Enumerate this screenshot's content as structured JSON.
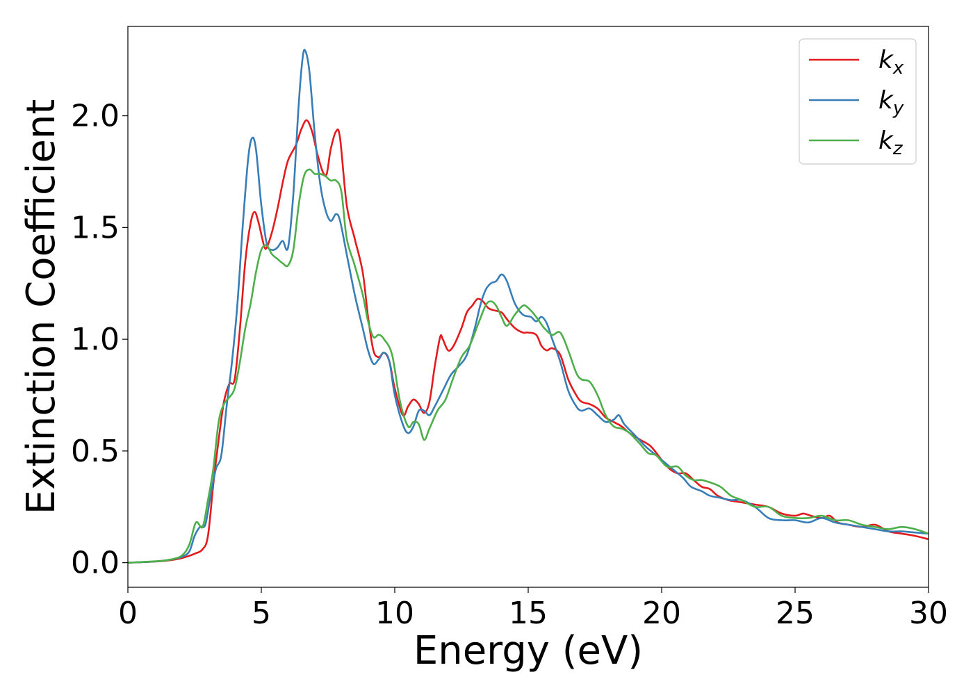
{
  "chart_data": {
    "type": "line",
    "xlabel": "Energy (eV)",
    "ylabel": "Extinction Coefficient",
    "xlim": [
      0,
      30
    ],
    "ylim": [
      -0.11,
      2.4
    ],
    "xticks": [
      "0",
      "5",
      "10",
      "15",
      "20",
      "25",
      "30"
    ],
    "yticks": [
      "0.0",
      "0.5",
      "1.0",
      "1.5",
      "2.0"
    ],
    "grid": false,
    "legend_position": "top-right",
    "series": [
      {
        "name": "k",
        "subscript": "x",
        "color": "#e41a1c",
        "points": [
          [
            0,
            0
          ],
          [
            1,
            0.005
          ],
          [
            1.5,
            0.01
          ],
          [
            2,
            0.02
          ],
          [
            2.5,
            0.04
          ],
          [
            2.8,
            0.06
          ],
          [
            3.0,
            0.12
          ],
          [
            3.2,
            0.35
          ],
          [
            3.4,
            0.55
          ],
          [
            3.6,
            0.72
          ],
          [
            3.8,
            0.8
          ],
          [
            4.0,
            0.82
          ],
          [
            4.2,
            1.05
          ],
          [
            4.4,
            1.35
          ],
          [
            4.6,
            1.52
          ],
          [
            4.75,
            1.57
          ],
          [
            4.9,
            1.52
          ],
          [
            5.1,
            1.42
          ],
          [
            5.2,
            1.41
          ],
          [
            5.4,
            1.48
          ],
          [
            5.6,
            1.58
          ],
          [
            5.8,
            1.7
          ],
          [
            6.0,
            1.8
          ],
          [
            6.3,
            1.87
          ],
          [
            6.5,
            1.94
          ],
          [
            6.7,
            1.98
          ],
          [
            6.9,
            1.93
          ],
          [
            7.1,
            1.83
          ],
          [
            7.3,
            1.75
          ],
          [
            7.45,
            1.74
          ],
          [
            7.6,
            1.85
          ],
          [
            7.8,
            1.93
          ],
          [
            7.95,
            1.9
          ],
          [
            8.2,
            1.6
          ],
          [
            8.5,
            1.45
          ],
          [
            8.8,
            1.3
          ],
          [
            9.0,
            1.1
          ],
          [
            9.2,
            0.95
          ],
          [
            9.4,
            0.92
          ],
          [
            9.6,
            0.94
          ],
          [
            9.8,
            0.9
          ],
          [
            10.0,
            0.78
          ],
          [
            10.3,
            0.66
          ],
          [
            10.5,
            0.7
          ],
          [
            10.7,
            0.73
          ],
          [
            10.9,
            0.71
          ],
          [
            11.1,
            0.67
          ],
          [
            11.3,
            0.72
          ],
          [
            11.5,
            0.88
          ],
          [
            11.7,
            1.01
          ],
          [
            11.8,
            1.0
          ],
          [
            12.0,
            0.95
          ],
          [
            12.2,
            0.97
          ],
          [
            12.5,
            1.05
          ],
          [
            12.7,
            1.12
          ],
          [
            12.9,
            1.15
          ],
          [
            13.1,
            1.18
          ],
          [
            13.3,
            1.17
          ],
          [
            13.5,
            1.14
          ],
          [
            13.7,
            1.13
          ],
          [
            14.0,
            1.12
          ],
          [
            14.2,
            1.09
          ],
          [
            14.5,
            1.05
          ],
          [
            14.8,
            1.03
          ],
          [
            15.0,
            1.03
          ],
          [
            15.3,
            1.02
          ],
          [
            15.5,
            0.97
          ],
          [
            15.7,
            0.95
          ],
          [
            15.9,
            0.96
          ],
          [
            16.2,
            0.93
          ],
          [
            16.5,
            0.82
          ],
          [
            16.8,
            0.75
          ],
          [
            17.0,
            0.72
          ],
          [
            17.3,
            0.71
          ],
          [
            17.6,
            0.69
          ],
          [
            17.9,
            0.65
          ],
          [
            18.2,
            0.63
          ],
          [
            18.5,
            0.61
          ],
          [
            18.8,
            0.58
          ],
          [
            19.2,
            0.55
          ],
          [
            19.6,
            0.52
          ],
          [
            20.0,
            0.46
          ],
          [
            20.3,
            0.42
          ],
          [
            20.6,
            0.4
          ],
          [
            20.9,
            0.4
          ],
          [
            21.2,
            0.37
          ],
          [
            21.5,
            0.34
          ],
          [
            21.8,
            0.33
          ],
          [
            22.1,
            0.3
          ],
          [
            22.5,
            0.28
          ],
          [
            23,
            0.27
          ],
          [
            23.5,
            0.26
          ],
          [
            24,
            0.25
          ],
          [
            24.5,
            0.22
          ],
          [
            25,
            0.21
          ],
          [
            25.3,
            0.22
          ],
          [
            25.6,
            0.21
          ],
          [
            26,
            0.2
          ],
          [
            26.3,
            0.21
          ],
          [
            26.6,
            0.18
          ],
          [
            27,
            0.17
          ],
          [
            27.5,
            0.16
          ],
          [
            28,
            0.17
          ],
          [
            28.5,
            0.14
          ],
          [
            29,
            0.13
          ],
          [
            29.5,
            0.12
          ],
          [
            30,
            0.105
          ]
        ]
      },
      {
        "name": "k",
        "subscript": "y",
        "color": "#377eb8",
        "points": [
          [
            0,
            0
          ],
          [
            1,
            0.005
          ],
          [
            1.5,
            0.012
          ],
          [
            2,
            0.025
          ],
          [
            2.3,
            0.05
          ],
          [
            2.5,
            0.12
          ],
          [
            2.7,
            0.16
          ],
          [
            2.9,
            0.17
          ],
          [
            3.1,
            0.3
          ],
          [
            3.3,
            0.42
          ],
          [
            3.5,
            0.48
          ],
          [
            3.7,
            0.7
          ],
          [
            3.9,
            0.9
          ],
          [
            4.1,
            1.15
          ],
          [
            4.3,
            1.5
          ],
          [
            4.5,
            1.8
          ],
          [
            4.65,
            1.9
          ],
          [
            4.8,
            1.85
          ],
          [
            5.0,
            1.6
          ],
          [
            5.2,
            1.43
          ],
          [
            5.4,
            1.4
          ],
          [
            5.6,
            1.41
          ],
          [
            5.8,
            1.44
          ],
          [
            6.0,
            1.41
          ],
          [
            6.2,
            1.65
          ],
          [
            6.4,
            2.05
          ],
          [
            6.55,
            2.26
          ],
          [
            6.65,
            2.29
          ],
          [
            6.8,
            2.2
          ],
          [
            7.0,
            1.92
          ],
          [
            7.2,
            1.7
          ],
          [
            7.4,
            1.58
          ],
          [
            7.6,
            1.53
          ],
          [
            7.8,
            1.56
          ],
          [
            7.95,
            1.53
          ],
          [
            8.2,
            1.38
          ],
          [
            8.5,
            1.2
          ],
          [
            8.8,
            1.05
          ],
          [
            9.0,
            0.95
          ],
          [
            9.2,
            0.89
          ],
          [
            9.4,
            0.91
          ],
          [
            9.6,
            0.94
          ],
          [
            9.8,
            0.9
          ],
          [
            10.0,
            0.75
          ],
          [
            10.3,
            0.62
          ],
          [
            10.5,
            0.58
          ],
          [
            10.7,
            0.61
          ],
          [
            10.9,
            0.68
          ],
          [
            11.1,
            0.68
          ],
          [
            11.3,
            0.66
          ],
          [
            11.5,
            0.7
          ],
          [
            11.8,
            0.77
          ],
          [
            12.1,
            0.84
          ],
          [
            12.4,
            0.88
          ],
          [
            12.7,
            0.93
          ],
          [
            13.0,
            1.05
          ],
          [
            13.2,
            1.15
          ],
          [
            13.4,
            1.22
          ],
          [
            13.6,
            1.25
          ],
          [
            13.8,
            1.26
          ],
          [
            14.0,
            1.29
          ],
          [
            14.2,
            1.26
          ],
          [
            14.5,
            1.16
          ],
          [
            14.8,
            1.11
          ],
          [
            15.1,
            1.1
          ],
          [
            15.3,
            1.08
          ],
          [
            15.5,
            1.1
          ],
          [
            15.7,
            1.07
          ],
          [
            15.9,
            1.0
          ],
          [
            16.2,
            0.9
          ],
          [
            16.5,
            0.77
          ],
          [
            16.8,
            0.7
          ],
          [
            17.0,
            0.68
          ],
          [
            17.3,
            0.69
          ],
          [
            17.6,
            0.66
          ],
          [
            17.9,
            0.63
          ],
          [
            18.2,
            0.64
          ],
          [
            18.4,
            0.66
          ],
          [
            18.6,
            0.62
          ],
          [
            19.0,
            0.57
          ],
          [
            19.4,
            0.52
          ],
          [
            19.8,
            0.48
          ],
          [
            20.2,
            0.44
          ],
          [
            20.5,
            0.41
          ],
          [
            20.8,
            0.38
          ],
          [
            21.1,
            0.34
          ],
          [
            21.5,
            0.32
          ],
          [
            21.8,
            0.3
          ],
          [
            22.2,
            0.29
          ],
          [
            22.6,
            0.28
          ],
          [
            23,
            0.28
          ],
          [
            23.5,
            0.25
          ],
          [
            24,
            0.2
          ],
          [
            24.5,
            0.19
          ],
          [
            25,
            0.19
          ],
          [
            25.5,
            0.18
          ],
          [
            26,
            0.2
          ],
          [
            26.5,
            0.18
          ],
          [
            27,
            0.17
          ],
          [
            27.5,
            0.16
          ],
          [
            28,
            0.15
          ],
          [
            28.5,
            0.14
          ],
          [
            29,
            0.14
          ],
          [
            29.5,
            0.135
          ],
          [
            30,
            0.13
          ]
        ]
      },
      {
        "name": "k",
        "subscript": "z",
        "color": "#4daf4a",
        "points": [
          [
            0,
            0
          ],
          [
            1,
            0.006
          ],
          [
            1.5,
            0.012
          ],
          [
            2,
            0.03
          ],
          [
            2.3,
            0.08
          ],
          [
            2.55,
            0.18
          ],
          [
            2.8,
            0.16
          ],
          [
            3.0,
            0.28
          ],
          [
            3.2,
            0.42
          ],
          [
            3.4,
            0.63
          ],
          [
            3.6,
            0.71
          ],
          [
            3.8,
            0.74
          ],
          [
            4.0,
            0.78
          ],
          [
            4.2,
            0.9
          ],
          [
            4.4,
            1.05
          ],
          [
            4.6,
            1.16
          ],
          [
            4.8,
            1.3
          ],
          [
            5.0,
            1.4
          ],
          [
            5.2,
            1.42
          ],
          [
            5.4,
            1.38
          ],
          [
            5.6,
            1.36
          ],
          [
            5.8,
            1.34
          ],
          [
            6.0,
            1.33
          ],
          [
            6.2,
            1.4
          ],
          [
            6.4,
            1.6
          ],
          [
            6.6,
            1.73
          ],
          [
            6.8,
            1.76
          ],
          [
            7.0,
            1.74
          ],
          [
            7.2,
            1.74
          ],
          [
            7.4,
            1.73
          ],
          [
            7.6,
            1.71
          ],
          [
            7.8,
            1.71
          ],
          [
            8.0,
            1.66
          ],
          [
            8.2,
            1.45
          ],
          [
            8.5,
            1.33
          ],
          [
            8.8,
            1.2
          ],
          [
            9.0,
            1.08
          ],
          [
            9.2,
            1.01
          ],
          [
            9.4,
            1.02
          ],
          [
            9.6,
            1.0
          ],
          [
            9.9,
            0.93
          ],
          [
            10.2,
            0.72
          ],
          [
            10.5,
            0.61
          ],
          [
            10.7,
            0.63
          ],
          [
            10.9,
            0.62
          ],
          [
            11.1,
            0.55
          ],
          [
            11.3,
            0.6
          ],
          [
            11.6,
            0.68
          ],
          [
            11.9,
            0.73
          ],
          [
            12.2,
            0.83
          ],
          [
            12.5,
            0.92
          ],
          [
            12.8,
            0.97
          ],
          [
            13.1,
            1.06
          ],
          [
            13.4,
            1.15
          ],
          [
            13.6,
            1.17
          ],
          [
            13.8,
            1.15
          ],
          [
            14.0,
            1.1
          ],
          [
            14.2,
            1.06
          ],
          [
            14.5,
            1.11
          ],
          [
            14.8,
            1.15
          ],
          [
            15.0,
            1.14
          ],
          [
            15.3,
            1.1
          ],
          [
            15.6,
            1.05
          ],
          [
            15.9,
            1.02
          ],
          [
            16.2,
            1.03
          ],
          [
            16.5,
            0.95
          ],
          [
            16.8,
            0.85
          ],
          [
            17.0,
            0.82
          ],
          [
            17.3,
            0.81
          ],
          [
            17.6,
            0.75
          ],
          [
            17.9,
            0.66
          ],
          [
            18.2,
            0.61
          ],
          [
            18.5,
            0.6
          ],
          [
            18.8,
            0.58
          ],
          [
            19.2,
            0.53
          ],
          [
            19.5,
            0.49
          ],
          [
            19.8,
            0.48
          ],
          [
            20.2,
            0.43
          ],
          [
            20.6,
            0.43
          ],
          [
            20.9,
            0.39
          ],
          [
            21.2,
            0.37
          ],
          [
            21.5,
            0.37
          ],
          [
            21.8,
            0.36
          ],
          [
            22.2,
            0.34
          ],
          [
            22.6,
            0.3
          ],
          [
            23,
            0.28
          ],
          [
            23.5,
            0.25
          ],
          [
            24,
            0.25
          ],
          [
            24.5,
            0.21
          ],
          [
            25,
            0.2
          ],
          [
            25.5,
            0.2
          ],
          [
            26,
            0.21
          ],
          [
            26.5,
            0.19
          ],
          [
            27,
            0.19
          ],
          [
            27.5,
            0.17
          ],
          [
            28,
            0.16
          ],
          [
            28.5,
            0.15
          ],
          [
            29,
            0.16
          ],
          [
            29.5,
            0.15
          ],
          [
            30,
            0.13
          ]
        ]
      }
    ]
  }
}
